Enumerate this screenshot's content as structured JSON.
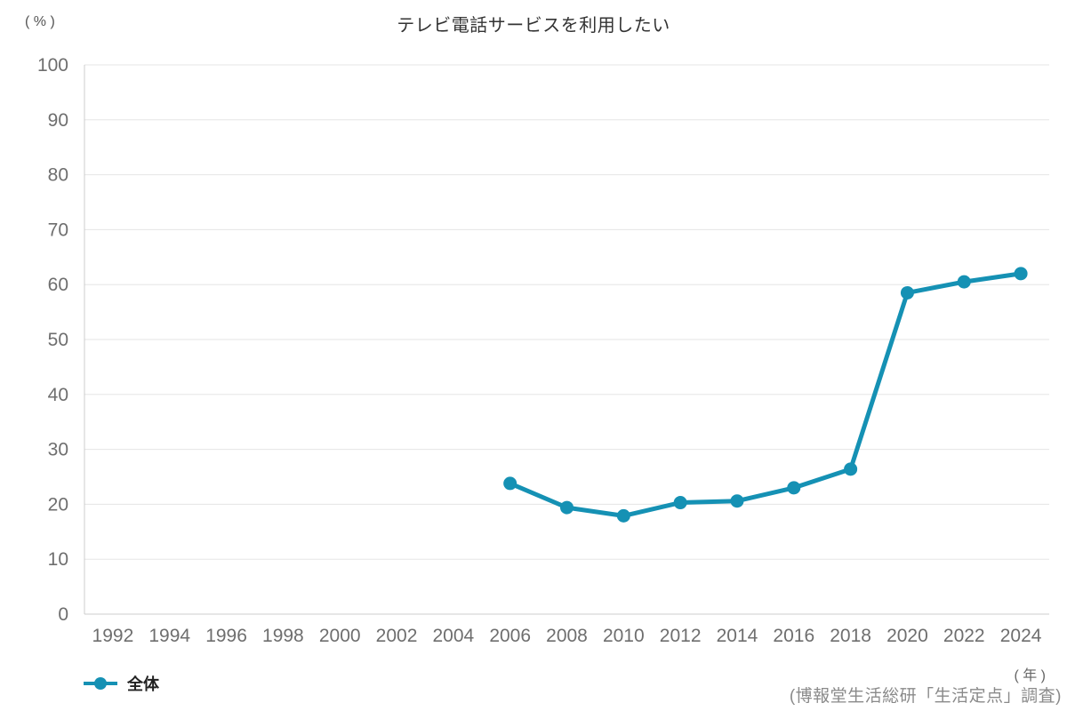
{
  "title": "テレビ電話サービスを利用したい",
  "y_unit_label": "( % )",
  "x_unit_label": "( 年 )",
  "source": "(博報堂生活総研「生活定点」調査)",
  "legend": {
    "series_label": "全体"
  },
  "colors": {
    "series": "#1591b4",
    "grid": "#e5e5e5",
    "axis": "#cccccc",
    "tick_text": "#6e6e6e",
    "title_text": "#333333",
    "source_text": "#8a8a8a"
  },
  "chart_data": {
    "type": "line",
    "title": "テレビ電話サービスを利用したい",
    "xlabel": "( 年 )",
    "ylabel": "( % )",
    "categories": [
      1992,
      1994,
      1996,
      1998,
      2000,
      2002,
      2004,
      2006,
      2008,
      2010,
      2012,
      2014,
      2016,
      2018,
      2020,
      2022,
      2024
    ],
    "series": [
      {
        "name": "全体",
        "x": [
          2006,
          2008,
          2010,
          2012,
          2014,
          2016,
          2018,
          2020,
          2022,
          2024
        ],
        "values": [
          23.8,
          19.4,
          17.9,
          20.3,
          20.6,
          23.0,
          26.4,
          58.5,
          60.5,
          62.0
        ]
      }
    ],
    "ylim": [
      0,
      100
    ],
    "ytick_step": 10,
    "grid": "horizontal",
    "legend_position": "bottom-left"
  }
}
